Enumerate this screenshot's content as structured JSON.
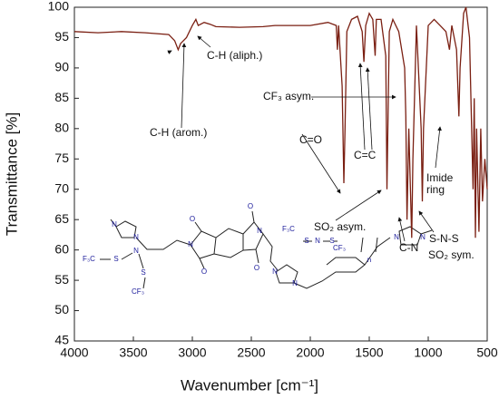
{
  "chart_data": {
    "type": "line",
    "xlabel": "Wavenumber [cm⁻¹]",
    "ylabel": "Transmittance [%]",
    "color": "#7a1f12",
    "x": [
      4000,
      3800,
      3600,
      3400,
      3200,
      3150,
      3120,
      3100,
      3050,
      3000,
      2970,
      2950,
      2900,
      2850,
      2800,
      2600,
      2400,
      2300,
      2000,
      1850,
      1780,
      1770,
      1760,
      1730,
      1715,
      1705,
      1690,
      1650,
      1600,
      1560,
      1545,
      1530,
      1500,
      1470,
      1450,
      1440,
      1400,
      1360,
      1350,
      1330,
      1300,
      1250,
      1200,
      1190,
      1180,
      1165,
      1140,
      1130,
      1100,
      1060,
      1050,
      1040,
      1000,
      950,
      900,
      850,
      820,
      800,
      760,
      740,
      730,
      700,
      680,
      650,
      620,
      610,
      600,
      590,
      570,
      555,
      540,
      520,
      500
    ],
    "values": [
      96,
      95.8,
      96,
      95.8,
      95.5,
      94.5,
      93,
      94,
      95,
      97,
      98,
      97,
      97.5,
      97.2,
      96.8,
      96.7,
      96.8,
      97,
      97,
      97.5,
      97,
      93,
      97,
      87,
      71,
      80,
      96,
      98,
      98.5,
      96,
      91,
      97,
      99,
      98,
      92,
      98,
      98,
      92,
      70,
      96,
      98,
      96,
      90,
      82,
      65,
      80,
      62,
      75,
      97,
      80,
      68,
      80,
      97,
      98,
      97,
      96,
      93,
      97,
      93,
      82,
      90,
      99,
      100,
      95,
      70,
      85,
      62,
      80,
      63,
      80,
      68,
      75,
      70
    ],
    "xlim": [
      4000,
      500
    ],
    "ylim": [
      45,
      100
    ],
    "xticks": [
      4000,
      3500,
      3000,
      2500,
      2000,
      1500,
      1000,
      500
    ],
    "yticks": [
      45,
      50,
      55,
      60,
      65,
      70,
      75,
      80,
      85,
      90,
      95,
      100
    ],
    "annotations": [
      {
        "text": "C-H (arom.)"
      },
      {
        "text": "C-H (aliph.)"
      },
      {
        "text": "CF₃ asym."
      },
      {
        "text": "C=O"
      },
      {
        "text": "C=C"
      },
      {
        "text": "SO₂ asym."
      },
      {
        "text": "C-N"
      },
      {
        "text": "SO₂ sym."
      },
      {
        "text": "S-N-S"
      },
      {
        "lines": [
          "Imide",
          "ring"
        ]
      }
    ],
    "structure_labels": [
      "N",
      "N",
      "F₃C",
      "S",
      "N",
      "S",
      "CF₃",
      "N",
      "N",
      "O",
      "O",
      "O",
      "O",
      "F₃C",
      "S",
      "N",
      "S",
      "CF₃",
      "N",
      "N",
      "N",
      "N",
      "n"
    ]
  }
}
